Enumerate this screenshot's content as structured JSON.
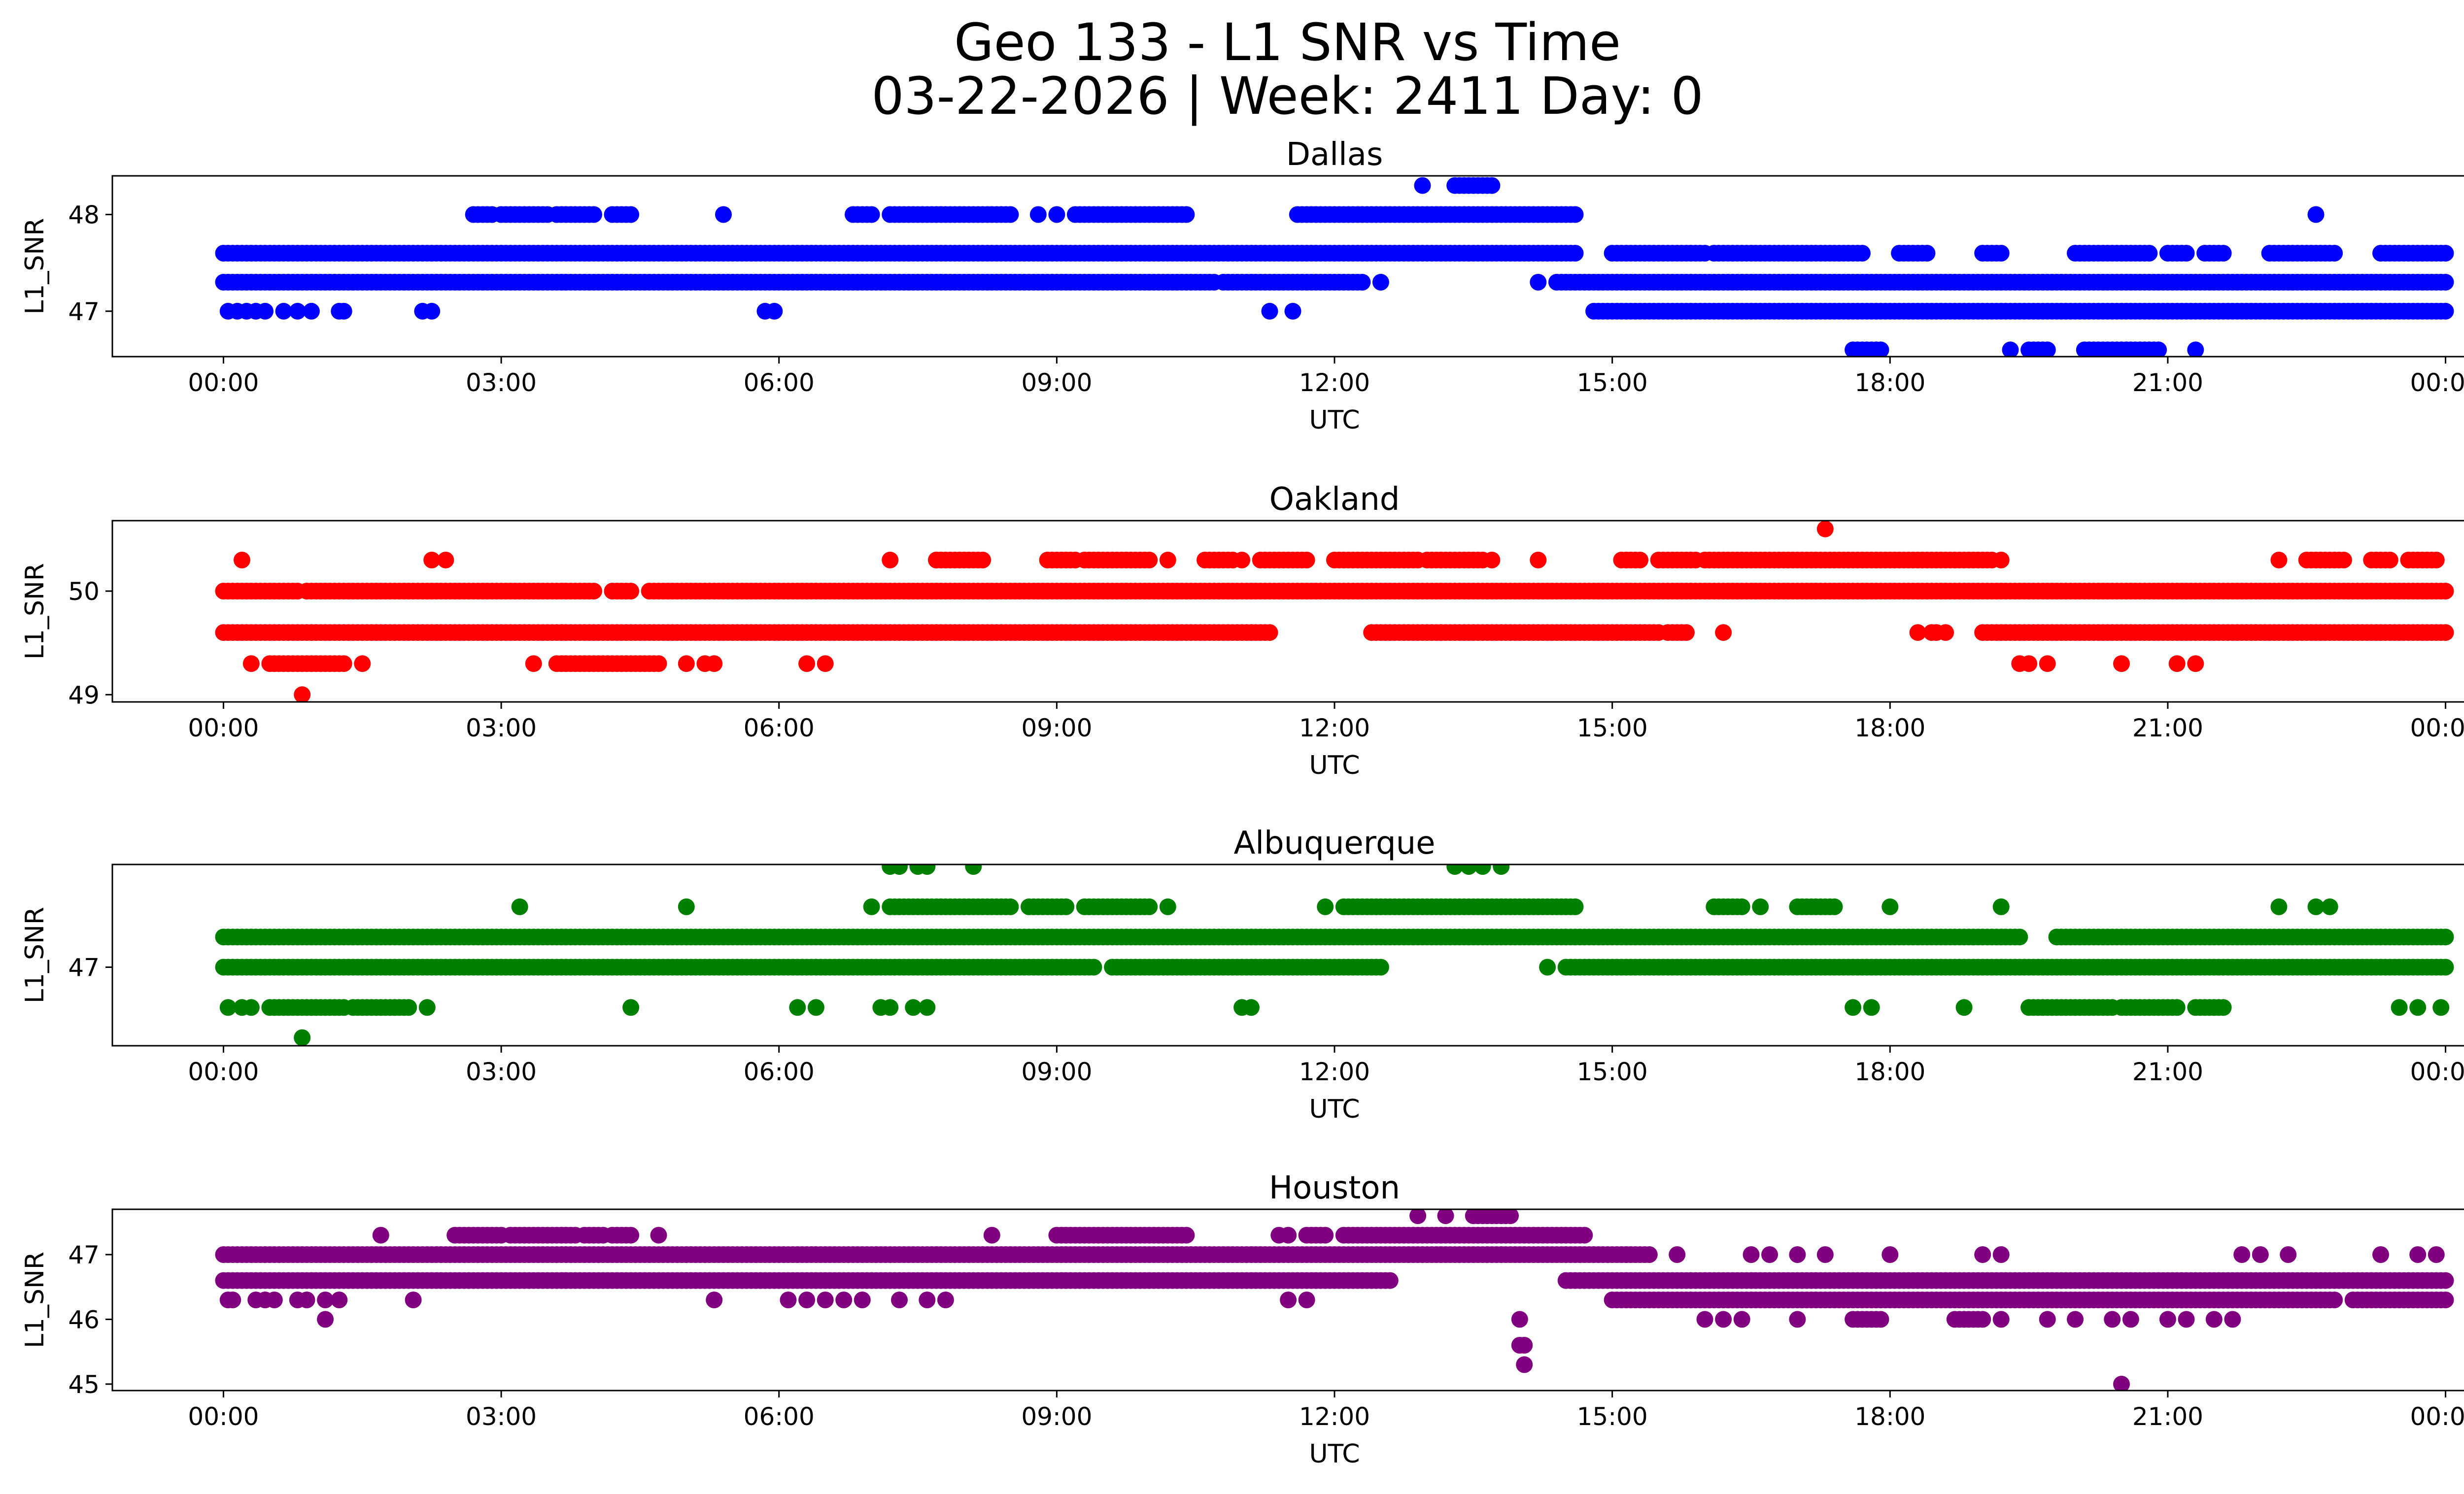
{
  "title_line1": "Geo 133 - L1 SNR vs Time",
  "title_line2": "03-22-2026 | Week: 2411 Day: 0",
  "chart_data": [
    {
      "type": "scatter",
      "title": "Dallas",
      "xlabel": "UTC",
      "ylabel": "L1_SNR",
      "color": "#0000ff",
      "xticks": [
        "00:00",
        "03:00",
        "06:00",
        "09:00",
        "12:00",
        "15:00",
        "18:00",
        "21:00",
        "00:00"
      ],
      "xlim_hours": [
        -1.2,
        25.2
      ],
      "ylim": [
        46.53,
        48.4
      ],
      "yticks": [
        47,
        48
      ],
      "bands": [
        {
          "y": 47.6,
          "ranges": [
            [
              0,
              14.6
            ],
            [
              15.0,
              16.0
            ],
            [
              16.1,
              17.7
            ],
            [
              18.1,
              18.4
            ],
            [
              19.0,
              19.2
            ],
            [
              20.0,
              20.8
            ],
            [
              21.0,
              21.2
            ],
            [
              21.4,
              21.6
            ],
            [
              22.1,
              22.8
            ],
            [
              23.3,
              24.0
            ]
          ]
        },
        {
          "y": 47.3,
          "ranges": [
            [
              0,
              10.7
            ],
            [
              10.8,
              12.3
            ],
            [
              14.4,
              24.0
            ]
          ]
        },
        {
          "y": 47.0,
          "ranges": [
            [
              14.8,
              24.0
            ]
          ]
        },
        {
          "y": 48.0,
          "ranges": [
            [
              2.7,
              2.9
            ],
            [
              3.0,
              3.5
            ],
            [
              3.6,
              4.0
            ],
            [
              4.2,
              4.4
            ],
            [
              6.8,
              7.0
            ],
            [
              7.2,
              8.5
            ],
            [
              9.2,
              10.4
            ],
            [
              11.6,
              14.6
            ]
          ]
        },
        {
          "y": 48.3,
          "ranges": [
            [
              13.3,
              13.7
            ]
          ]
        },
        {
          "y": 46.6,
          "ranges": [
            [
              17.6,
              17.9
            ],
            [
              19.5,
              19.7
            ],
            [
              20.1,
              20.9
            ]
          ]
        }
      ],
      "points": [
        {
          "x": 0.05,
          "y": 47.0
        },
        {
          "x": 0.15,
          "y": 47.0
        },
        {
          "x": 0.25,
          "y": 47.0
        },
        {
          "x": 0.35,
          "y": 47.0
        },
        {
          "x": 0.45,
          "y": 47.0
        },
        {
          "x": 0.65,
          "y": 47.0
        },
        {
          "x": 0.8,
          "y": 47.0
        },
        {
          "x": 0.95,
          "y": 47.0
        },
        {
          "x": 1.25,
          "y": 47.0
        },
        {
          "x": 1.3,
          "y": 47.0
        },
        {
          "x": 2.15,
          "y": 47.0
        },
        {
          "x": 2.25,
          "y": 47.0
        },
        {
          "x": 5.85,
          "y": 47.0
        },
        {
          "x": 5.95,
          "y": 47.0
        },
        {
          "x": 11.3,
          "y": 47.0
        },
        {
          "x": 11.55,
          "y": 47.0
        },
        {
          "x": 5.4,
          "y": 48.0
        },
        {
          "x": 8.8,
          "y": 48.0
        },
        {
          "x": 9.0,
          "y": 48.0
        },
        {
          "x": 12.95,
          "y": 48.3
        },
        {
          "x": 22.6,
          "y": 48.0
        },
        {
          "x": 12.5,
          "y": 47.3
        },
        {
          "x": 14.2,
          "y": 47.3
        },
        {
          "x": 19.3,
          "y": 46.6
        },
        {
          "x": 21.3,
          "y": 46.6
        }
      ]
    },
    {
      "type": "scatter",
      "title": "Oakland",
      "xlabel": "UTC",
      "ylabel": "L1_SNR",
      "color": "#ff0000",
      "xticks": [
        "00:00",
        "03:00",
        "06:00",
        "09:00",
        "12:00",
        "15:00",
        "18:00",
        "21:00",
        "00:00"
      ],
      "xlim_hours": [
        -1.2,
        25.2
      ],
      "ylim": [
        48.93,
        50.68
      ],
      "yticks": [
        49,
        50
      ],
      "bands": [
        {
          "y": 50.0,
          "ranges": [
            [
              0,
              0.8
            ],
            [
              0.9,
              4.0
            ],
            [
              4.2,
              4.4
            ],
            [
              4.6,
              24.0
            ]
          ]
        },
        {
          "y": 49.6,
          "ranges": [
            [
              0,
              11.3
            ],
            [
              12.4,
              15.5
            ],
            [
              15.6,
              15.8
            ],
            [
              19.0,
              24.0
            ]
          ]
        },
        {
          "y": 50.3,
          "ranges": [
            [
              7.7,
              8.2
            ],
            [
              8.9,
              9.2
            ],
            [
              9.3,
              10.0
            ],
            [
              10.6,
              10.9
            ],
            [
              11.2,
              11.7
            ],
            [
              12.0,
              12.9
            ],
            [
              13.0,
              13.6
            ],
            [
              15.1,
              15.3
            ],
            [
              15.5,
              15.9
            ],
            [
              16.0,
              19.1
            ],
            [
              22.5,
              22.9
            ],
            [
              23.2,
              23.4
            ],
            [
              23.6,
              23.9
            ]
          ]
        },
        {
          "y": 49.3,
          "ranges": [
            [
              0.5,
              1.3
            ],
            [
              3.6,
              4.7
            ]
          ]
        }
      ],
      "points": [
        {
          "x": 0.2,
          "y": 50.3
        },
        {
          "x": 2.25,
          "y": 50.3
        },
        {
          "x": 2.4,
          "y": 50.3
        },
        {
          "x": 7.2,
          "y": 50.3
        },
        {
          "x": 7.7,
          "y": 50.3
        },
        {
          "x": 10.2,
          "y": 50.3
        },
        {
          "x": 11.0,
          "y": 50.3
        },
        {
          "x": 13.7,
          "y": 50.3
        },
        {
          "x": 14.2,
          "y": 50.3
        },
        {
          "x": 19.2,
          "y": 50.3
        },
        {
          "x": 22.2,
          "y": 50.3
        },
        {
          "x": 17.3,
          "y": 50.6
        },
        {
          "x": 0.3,
          "y": 49.3
        },
        {
          "x": 1.5,
          "y": 49.3
        },
        {
          "x": 3.35,
          "y": 49.3
        },
        {
          "x": 5.0,
          "y": 49.3
        },
        {
          "x": 5.2,
          "y": 49.3
        },
        {
          "x": 5.3,
          "y": 49.3
        },
        {
          "x": 6.3,
          "y": 49.3
        },
        {
          "x": 6.5,
          "y": 49.3
        },
        {
          "x": 19.4,
          "y": 49.3
        },
        {
          "x": 19.5,
          "y": 49.3
        },
        {
          "x": 19.7,
          "y": 49.3
        },
        {
          "x": 20.5,
          "y": 49.3
        },
        {
          "x": 21.1,
          "y": 49.3
        },
        {
          "x": 21.3,
          "y": 49.3
        },
        {
          "x": 0.85,
          "y": 49.0
        },
        {
          "x": 16.2,
          "y": 49.6
        },
        {
          "x": 18.3,
          "y": 49.6
        },
        {
          "x": 18.45,
          "y": 49.6
        },
        {
          "x": 18.5,
          "y": 49.6
        },
        {
          "x": 18.6,
          "y": 49.6
        }
      ]
    },
    {
      "type": "scatter",
      "title": "Albuquerque",
      "xlabel": "UTC",
      "ylabel": "L1_SNR",
      "color": "#008000",
      "xticks": [
        "00:00",
        "03:00",
        "06:00",
        "09:00",
        "12:00",
        "15:00",
        "18:00",
        "21:00",
        "00:00"
      ],
      "xlim_hours": [
        -1.2,
        25.2
      ],
      "ylim": [
        46.22,
        48.02
      ],
      "yticks": [
        47
      ],
      "bands": [
        {
          "y": 47.3,
          "ranges": [
            [
              0,
              19.4
            ],
            [
              19.8,
              24.0
            ]
          ]
        },
        {
          "y": 47.0,
          "ranges": [
            [
              0,
              9.4
            ],
            [
              9.6,
              12.5
            ],
            [
              14.5,
              24.0
            ]
          ]
        },
        {
          "y": 47.6,
          "ranges": [
            [
              7.2,
              8.5
            ],
            [
              8.7,
              9.1
            ],
            [
              9.3,
              10.0
            ],
            [
              12.1,
              14.6
            ],
            [
              16.1,
              16.4
            ],
            [
              17.0,
              17.4
            ]
          ]
        },
        {
          "y": 46.6,
          "ranges": [
            [
              0.5,
              1.3
            ],
            [
              1.4,
              2.0
            ],
            [
              19.5,
              20.4
            ],
            [
              20.5,
              21.1
            ],
            [
              21.3,
              21.6
            ]
          ]
        }
      ],
      "points": [
        {
          "x": 0.05,
          "y": 46.6
        },
        {
          "x": 0.2,
          "y": 46.6
        },
        {
          "x": 0.3,
          "y": 46.6
        },
        {
          "x": 2.2,
          "y": 46.6
        },
        {
          "x": 4.4,
          "y": 46.6
        },
        {
          "x": 6.2,
          "y": 46.6
        },
        {
          "x": 6.4,
          "y": 46.6
        },
        {
          "x": 7.1,
          "y": 46.6
        },
        {
          "x": 7.2,
          "y": 46.6
        },
        {
          "x": 7.45,
          "y": 46.6
        },
        {
          "x": 7.6,
          "y": 46.6
        },
        {
          "x": 11.0,
          "y": 46.6
        },
        {
          "x": 11.1,
          "y": 46.6
        },
        {
          "x": 17.6,
          "y": 46.6
        },
        {
          "x": 17.8,
          "y": 46.6
        },
        {
          "x": 18.8,
          "y": 46.6
        },
        {
          "x": 23.5,
          "y": 46.6
        },
        {
          "x": 23.7,
          "y": 46.6
        },
        {
          "x": 23.95,
          "y": 46.6
        },
        {
          "x": 0.85,
          "y": 46.3
        },
        {
          "x": 3.2,
          "y": 47.6
        },
        {
          "x": 5.0,
          "y": 47.6
        },
        {
          "x": 7.0,
          "y": 47.6
        },
        {
          "x": 10.2,
          "y": 47.6
        },
        {
          "x": 11.9,
          "y": 47.6
        },
        {
          "x": 16.6,
          "y": 47.6
        },
        {
          "x": 18.0,
          "y": 47.6
        },
        {
          "x": 19.2,
          "y": 47.6
        },
        {
          "x": 22.2,
          "y": 47.6
        },
        {
          "x": 22.6,
          "y": 47.6
        },
        {
          "x": 22.75,
          "y": 47.6
        },
        {
          "x": 14.3,
          "y": 47.0
        },
        {
          "x": 7.2,
          "y": 48.0
        },
        {
          "x": 7.3,
          "y": 48.0
        },
        {
          "x": 7.5,
          "y": 48.0
        },
        {
          "x": 7.6,
          "y": 48.0
        },
        {
          "x": 8.1,
          "y": 48.0
        },
        {
          "x": 13.3,
          "y": 48.0
        },
        {
          "x": 13.45,
          "y": 48.0
        },
        {
          "x": 13.6,
          "y": 48.0
        },
        {
          "x": 13.8,
          "y": 48.0
        }
      ]
    },
    {
      "type": "scatter",
      "title": "Houston",
      "xlabel": "UTC",
      "ylabel": "L1_SNR",
      "color": "#800080",
      "xticks": [
        "00:00",
        "03:00",
        "06:00",
        "09:00",
        "12:00",
        "15:00",
        "18:00",
        "21:00",
        "00:00"
      ],
      "xlim_hours": [
        -1.2,
        25.2
      ],
      "ylim": [
        44.9,
        47.7
      ],
      "yticks": [
        45,
        46,
        47
      ],
      "bands": [
        {
          "y": 47.0,
          "ranges": [
            [
              0,
              15.4
            ]
          ]
        },
        {
          "y": 46.6,
          "ranges": [
            [
              0,
              12.6
            ],
            [
              14.5,
              24.0
            ]
          ]
        },
        {
          "y": 46.3,
          "ranges": [
            [
              15.0,
              22.8
            ],
            [
              23.0,
              24.0
            ]
          ]
        },
        {
          "y": 47.3,
          "ranges": [
            [
              2.5,
              3.0
            ],
            [
              3.1,
              3.8
            ],
            [
              3.9,
              4.1
            ],
            [
              4.2,
              4.4
            ],
            [
              9.0,
              10.4
            ],
            [
              11.7,
              11.9
            ],
            [
              12.1,
              14.7
            ]
          ]
        },
        {
          "y": 47.6,
          "ranges": [
            [
              13.5,
              13.9
            ]
          ]
        },
        {
          "y": 46.0,
          "ranges": [
            [
              17.6,
              17.9
            ],
            [
              18.7,
              19.0
            ]
          ]
        }
      ],
      "points": [
        {
          "x": 0.05,
          "y": 46.3
        },
        {
          "x": 0.1,
          "y": 46.3
        },
        {
          "x": 0.35,
          "y": 46.3
        },
        {
          "x": 0.45,
          "y": 46.3
        },
        {
          "x": 0.55,
          "y": 46.3
        },
        {
          "x": 0.8,
          "y": 46.3
        },
        {
          "x": 0.9,
          "y": 46.3
        },
        {
          "x": 1.1,
          "y": 46.3
        },
        {
          "x": 2.05,
          "y": 46.3
        },
        {
          "x": 5.3,
          "y": 46.3
        },
        {
          "x": 6.1,
          "y": 46.3
        },
        {
          "x": 6.3,
          "y": 46.3
        },
        {
          "x": 6.5,
          "y": 46.3
        },
        {
          "x": 6.7,
          "y": 46.3
        },
        {
          "x": 6.9,
          "y": 46.3
        },
        {
          "x": 7.3,
          "y": 46.3
        },
        {
          "x": 7.6,
          "y": 46.3
        },
        {
          "x": 7.8,
          "y": 46.3
        },
        {
          "x": 11.5,
          "y": 46.3
        },
        {
          "x": 11.7,
          "y": 46.3
        },
        {
          "x": 1.1,
          "y": 46.0
        },
        {
          "x": 1.25,
          "y": 46.3
        },
        {
          "x": 1.7,
          "y": 47.3
        },
        {
          "x": 4.7,
          "y": 47.3
        },
        {
          "x": 8.3,
          "y": 47.3
        },
        {
          "x": 11.4,
          "y": 47.3
        },
        {
          "x": 11.5,
          "y": 47.3
        },
        {
          "x": 12.9,
          "y": 47.6
        },
        {
          "x": 13.2,
          "y": 47.6
        },
        {
          "x": 14.0,
          "y": 46.0
        },
        {
          "x": 14.05,
          "y": 45.6
        },
        {
          "x": 14.05,
          "y": 45.3
        },
        {
          "x": 14.0,
          "y": 45.6
        },
        {
          "x": 15.7,
          "y": 47.0
        },
        {
          "x": 16.5,
          "y": 47.0
        },
        {
          "x": 16.7,
          "y": 47.0
        },
        {
          "x": 17.0,
          "y": 47.0
        },
        {
          "x": 17.3,
          "y": 47.0
        },
        {
          "x": 18.0,
          "y": 47.0
        },
        {
          "x": 19.0,
          "y": 47.0
        },
        {
          "x": 19.2,
          "y": 47.0
        },
        {
          "x": 21.8,
          "y": 47.0
        },
        {
          "x": 22.0,
          "y": 47.0
        },
        {
          "x": 22.3,
          "y": 47.0
        },
        {
          "x": 23.3,
          "y": 47.0
        },
        {
          "x": 23.7,
          "y": 47.0
        },
        {
          "x": 23.9,
          "y": 47.0
        },
        {
          "x": 16.0,
          "y": 46.0
        },
        {
          "x": 16.2,
          "y": 46.0
        },
        {
          "x": 16.4,
          "y": 46.0
        },
        {
          "x": 17.0,
          "y": 46.0
        },
        {
          "x": 19.2,
          "y": 46.0
        },
        {
          "x": 19.7,
          "y": 46.0
        },
        {
          "x": 20.0,
          "y": 46.0
        },
        {
          "x": 20.4,
          "y": 46.0
        },
        {
          "x": 20.6,
          "y": 46.0
        },
        {
          "x": 21.0,
          "y": 46.0
        },
        {
          "x": 21.2,
          "y": 46.0
        },
        {
          "x": 21.5,
          "y": 46.0
        },
        {
          "x": 21.7,
          "y": 46.0
        },
        {
          "x": 20.5,
          "y": 45.0
        }
      ]
    }
  ]
}
